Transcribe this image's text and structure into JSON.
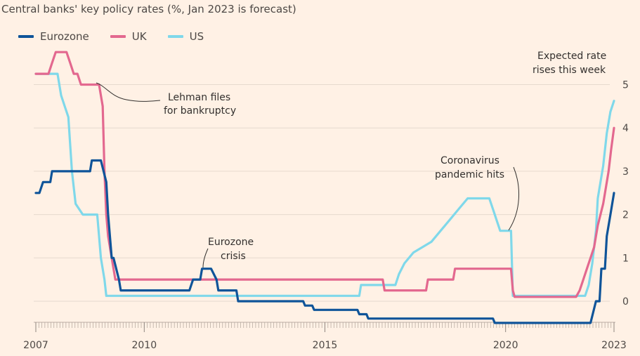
{
  "chart_data": {
    "type": "line",
    "title": "Central banks' key policy rates (%, Jan 2023 is forecast)",
    "xlabel": "",
    "ylabel": "%",
    "xlim": [
      2007,
      2023
    ],
    "ylim": [
      -0.55,
      5.2
    ],
    "x_ticks": [
      {
        "value": 2007,
        "label": "2007"
      },
      {
        "value": 2010,
        "label": "2010"
      },
      {
        "value": 2015,
        "label": "2015"
      },
      {
        "value": 2020,
        "label": "2020"
      },
      {
        "value": 2023,
        "label": "2023"
      }
    ],
    "y_ticks": [
      {
        "value": 5,
        "label": "5"
      },
      {
        "value": 4,
        "label": "4"
      },
      {
        "value": 3,
        "label": "3"
      },
      {
        "value": 2,
        "label": "2"
      },
      {
        "value": 1,
        "label": "1"
      },
      {
        "value": 0,
        "label": "0"
      }
    ],
    "series": [
      {
        "name": "Eurozone",
        "color": "#0f5499",
        "points": [
          [
            2007.0,
            2.5
          ],
          [
            2007.1,
            2.5
          ],
          [
            2007.2,
            2.75
          ],
          [
            2007.4,
            2.75
          ],
          [
            2007.45,
            3.0
          ],
          [
            2008.5,
            3.0
          ],
          [
            2008.55,
            3.25
          ],
          [
            2008.8,
            3.25
          ],
          [
            2008.95,
            2.75
          ],
          [
            2009.0,
            2.0
          ],
          [
            2009.1,
            1.0
          ],
          [
            2009.15,
            1.0
          ],
          [
            2009.3,
            0.5
          ],
          [
            2009.35,
            0.25
          ],
          [
            2011.25,
            0.25
          ],
          [
            2011.35,
            0.5
          ],
          [
            2011.55,
            0.5
          ],
          [
            2011.6,
            0.75
          ],
          [
            2011.85,
            0.75
          ],
          [
            2012.0,
            0.5
          ],
          [
            2012.05,
            0.25
          ],
          [
            2012.55,
            0.25
          ],
          [
            2012.6,
            0.0
          ],
          [
            2014.4,
            0.0
          ],
          [
            2014.45,
            -0.1
          ],
          [
            2014.65,
            -0.1
          ],
          [
            2014.7,
            -0.2
          ],
          [
            2015.9,
            -0.2
          ],
          [
            2015.95,
            -0.3
          ],
          [
            2016.15,
            -0.3
          ],
          [
            2016.2,
            -0.4
          ],
          [
            2019.65,
            -0.4
          ],
          [
            2019.7,
            -0.5
          ],
          [
            2022.35,
            -0.5
          ],
          [
            2022.5,
            0.0
          ],
          [
            2022.6,
            0.0
          ],
          [
            2022.65,
            0.75
          ],
          [
            2022.75,
            0.75
          ],
          [
            2022.8,
            1.5
          ],
          [
            2022.9,
            2.0
          ],
          [
            2023.0,
            2.5
          ]
        ]
      },
      {
        "name": "UK",
        "color": "#e3688f",
        "points": [
          [
            2007.0,
            5.25
          ],
          [
            2007.35,
            5.25
          ],
          [
            2007.45,
            5.5
          ],
          [
            2007.55,
            5.75
          ],
          [
            2007.85,
            5.75
          ],
          [
            2007.95,
            5.5
          ],
          [
            2008.05,
            5.25
          ],
          [
            2008.15,
            5.25
          ],
          [
            2008.25,
            5.0
          ],
          [
            2008.75,
            5.0
          ],
          [
            2008.85,
            4.5
          ],
          [
            2008.9,
            3.0
          ],
          [
            2008.95,
            2.0
          ],
          [
            2009.0,
            1.5
          ],
          [
            2009.1,
            1.0
          ],
          [
            2009.2,
            0.5
          ],
          [
            2016.6,
            0.5
          ],
          [
            2016.65,
            0.25
          ],
          [
            2017.8,
            0.25
          ],
          [
            2017.85,
            0.5
          ],
          [
            2018.55,
            0.5
          ],
          [
            2018.6,
            0.75
          ],
          [
            2020.15,
            0.75
          ],
          [
            2020.2,
            0.25
          ],
          [
            2020.25,
            0.1
          ],
          [
            2021.95,
            0.1
          ],
          [
            2022.05,
            0.25
          ],
          [
            2022.15,
            0.5
          ],
          [
            2022.25,
            0.75
          ],
          [
            2022.35,
            1.0
          ],
          [
            2022.45,
            1.25
          ],
          [
            2022.55,
            1.75
          ],
          [
            2022.7,
            2.25
          ],
          [
            2022.85,
            3.0
          ],
          [
            2022.92,
            3.5
          ],
          [
            2023.0,
            4.0
          ]
        ]
      },
      {
        "name": "US",
        "color": "#7fd8ea",
        "points": [
          [
            2007.0,
            5.25
          ],
          [
            2007.6,
            5.25
          ],
          [
            2007.7,
            4.75
          ],
          [
            2007.8,
            4.5
          ],
          [
            2007.9,
            4.25
          ],
          [
            2008.0,
            3.0
          ],
          [
            2008.1,
            2.25
          ],
          [
            2008.3,
            2.0
          ],
          [
            2008.7,
            2.0
          ],
          [
            2008.8,
            1.0
          ],
          [
            2008.9,
            0.5
          ],
          [
            2008.95,
            0.125
          ],
          [
            2015.95,
            0.125
          ],
          [
            2016.0,
            0.375
          ],
          [
            2016.95,
            0.375
          ],
          [
            2017.05,
            0.625
          ],
          [
            2017.2,
            0.875
          ],
          [
            2017.45,
            1.125
          ],
          [
            2017.95,
            1.375
          ],
          [
            2018.2,
            1.625
          ],
          [
            2018.45,
            1.875
          ],
          [
            2018.7,
            2.125
          ],
          [
            2018.95,
            2.375
          ],
          [
            2019.55,
            2.375
          ],
          [
            2019.65,
            2.125
          ],
          [
            2019.75,
            1.875
          ],
          [
            2019.85,
            1.625
          ],
          [
            2020.15,
            1.625
          ],
          [
            2020.2,
            0.125
          ],
          [
            2022.2,
            0.125
          ],
          [
            2022.3,
            0.375
          ],
          [
            2022.4,
            0.875
          ],
          [
            2022.5,
            1.625
          ],
          [
            2022.55,
            2.375
          ],
          [
            2022.7,
            3.125
          ],
          [
            2022.8,
            3.875
          ],
          [
            2022.9,
            4.375
          ],
          [
            2023.0,
            4.625
          ]
        ]
      }
    ],
    "annotations": [
      {
        "name": "lehman",
        "text": [
          "Lehman files",
          "for bankruptcy"
        ]
      },
      {
        "name": "eurozone-crisis",
        "text": [
          "Eurozone",
          "crisis"
        ]
      },
      {
        "name": "coronavirus",
        "text": [
          "Coronavirus",
          "pandemic hits"
        ]
      },
      {
        "name": "expected-rate-rises",
        "text": [
          "Expected rate",
          "rises this week"
        ]
      }
    ],
    "legend": "top-left"
  }
}
